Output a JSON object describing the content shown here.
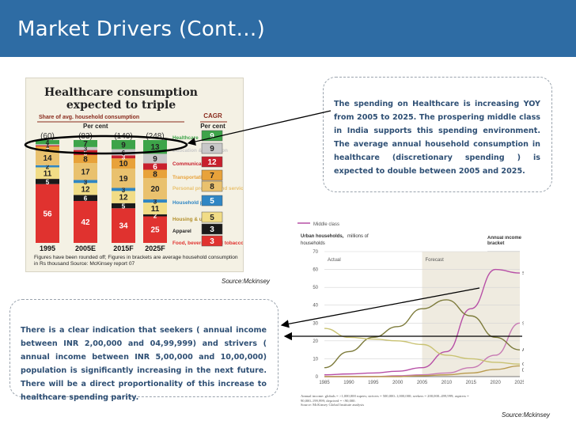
{
  "slide": {
    "title": "Market Drivers (Cont…)"
  },
  "left_chart": {
    "title_lines": [
      "Healthcare consumption",
      "expected to triple"
    ],
    "share_label": "Share of avg. household consumption",
    "percent_label": "Per cent",
    "cagr_label": "CAGR",
    "cagr_percent_label": "Per cent",
    "bracket_totals": [
      "(60)",
      "(83)",
      "(140)",
      "(248)"
    ],
    "years": [
      "1995",
      "2005E",
      "2015F",
      "2025F"
    ],
    "categories": [
      {
        "name": "Healthcare",
        "color": "#3da449",
        "cagr": "9"
      },
      {
        "name": "Education & recreation",
        "color": "#c8c8c8",
        "cagr": "9"
      },
      {
        "name": "Communication",
        "color": "#c8202d",
        "cagr": "12"
      },
      {
        "name": "Transportation",
        "color": "#e8a23a",
        "cagr": "7"
      },
      {
        "name": "Personal products and services",
        "color": "#e9c16e",
        "cagr": "8"
      },
      {
        "name": "Household products",
        "color": "#2f86c4",
        "cagr": "5"
      },
      {
        "name": "Housing & utilities",
        "color": "#f1dc86",
        "cagr": "5"
      },
      {
        "name": "Apparel",
        "color": "#1a1a1a",
        "cagr": "3"
      },
      {
        "name": "Food, beverages and tobacco",
        "color": "#e0322f",
        "cagr": "3"
      }
    ],
    "stacks": [
      [
        "4",
        "1",
        "1",
        "4",
        "14",
        "2",
        "11",
        "5",
        "56"
      ],
      [
        "7",
        "3",
        "5",
        "8",
        "17",
        "3",
        "12",
        "6",
        "42"
      ],
      [
        "9",
        "6",
        "3",
        "10",
        "19",
        "3",
        "12",
        "5",
        "34"
      ],
      [
        "13",
        "9",
        "6",
        "8",
        "20",
        "3",
        "11",
        "2",
        "25"
      ]
    ],
    "footnote": "Figures have been rounded off; Figures in brackets are average household consumption in Rs thousand   Source: McKinsey report 07",
    "source": "Source:Mckinsey"
  },
  "callout_top": {
    "text": "The spending on Healthcare is increasing YOY from 2005 to 2025. The prospering middle class in India supports this spending environment. The average annual household consumption in healthcare (discretionary spending ) is expected to double between 2005 and 2025."
  },
  "callout_bottom": {
    "text": "There is a clear indication that seekers ( annual income between INR 2,00,000 and 04,99,999) and strivers ( annual income between INR 5,00,000 and 10,00,000) population is significantly increasing in the next future. There will be a direct proportionality of this increase to healthcare spending parity."
  },
  "chart_data": {
    "type": "line",
    "legend_top": "Middle class",
    "title": "Urban households,",
    "title_suffix": "millions of",
    "title_line2": "households",
    "right_label": "Annual income bracket",
    "region_labels": [
      "Actual",
      "Forecast"
    ],
    "x": [
      1985,
      1990,
      1995,
      2000,
      2005,
      2010,
      2015,
      2020,
      2025
    ],
    "ylim": [
      0,
      70
    ],
    "yticks": [
      0,
      10,
      20,
      30,
      40,
      50,
      60,
      70
    ],
    "series": [
      {
        "name": "Seekers",
        "color": "#b74fa6",
        "values": [
          1,
          1.5,
          2,
          3,
          5,
          14,
          38,
          60,
          58
        ]
      },
      {
        "name": "Strivers",
        "color": "#c77ab4",
        "values": [
          0,
          0,
          0,
          0.5,
          1,
          2,
          5,
          12,
          30
        ]
      },
      {
        "name": "Aspirers",
        "color": "#7c7a3a",
        "values": [
          5,
          14,
          22,
          28,
          38,
          43,
          34,
          22,
          15
        ]
      },
      {
        "name": "Globals",
        "color": "#c9c272",
        "values": [
          27,
          22,
          21,
          20,
          18,
          12,
          10,
          8,
          7
        ]
      },
      {
        "name": "Deprived",
        "color": "#b99a4d",
        "values": [
          0,
          0,
          0,
          0,
          0.5,
          1,
          2,
          4,
          6
        ]
      }
    ],
    "footnote_1": "Annual income: globals = >1,000,000 rupees; strivers = 500,000–1,000,000; seekers = 200,000–499,999; aspirers = 90,000–199,999; deprived = <90,000.",
    "footnote_2": "Source: McKinsey Global Institute analysis",
    "source": "Source:Mckinsey"
  }
}
